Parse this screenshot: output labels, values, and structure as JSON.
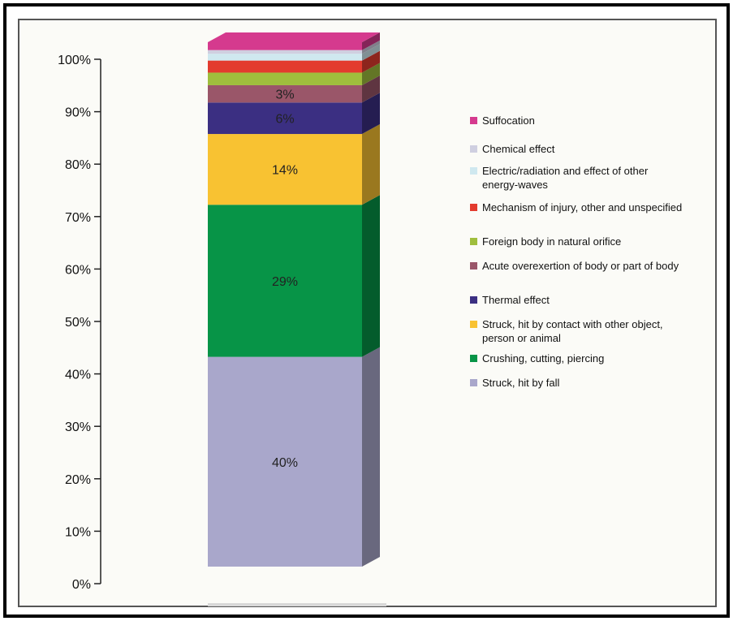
{
  "chart_data": {
    "type": "bar",
    "stacked": true,
    "categories": [
      ""
    ],
    "ylim": [
      0,
      100
    ],
    "yticks": [
      "0%",
      "10%",
      "20%",
      "30%",
      "40%",
      "50%",
      "60%",
      "70%",
      "80%",
      "90%",
      "100%"
    ],
    "legend_position": "right",
    "grid": false,
    "series": [
      {
        "name": "Struck, hit by fall",
        "value": 40,
        "label": "40%",
        "color": "#a9a7cb"
      },
      {
        "name": "Crushing, cutting, piercing",
        "value": 29,
        "label": "29%",
        "color": "#079447"
      },
      {
        "name": "Struck, hit by contact with other object, person or animal",
        "value": 13.5,
        "label": "14%",
        "color": "#f8c232"
      },
      {
        "name": "Thermal effect",
        "value": 6,
        "label": "6%",
        "color": "#3b2f82"
      },
      {
        "name": "Acute overexertion of body or part of body",
        "value": 3.3,
        "label": "3%",
        "color": "#9a5669"
      },
      {
        "name": "Foreign body in natural orifice",
        "value": 2.4,
        "label": "",
        "color": "#9fbe3d"
      },
      {
        "name": "Mechanism of injury, other and unspecified",
        "value": 2.3,
        "label": "",
        "color": "#e33b2e"
      },
      {
        "name": "Electric/radiation and effect of other energy-waves",
        "value": 1.3,
        "label": "",
        "color": "#cfe8ef"
      },
      {
        "name": "Chemical effect",
        "value": 0.7,
        "label": "",
        "color": "#cfcfe0"
      },
      {
        "name": "Suffocation",
        "value": 1.5,
        "label": "",
        "color": "#d53a8e"
      }
    ]
  }
}
